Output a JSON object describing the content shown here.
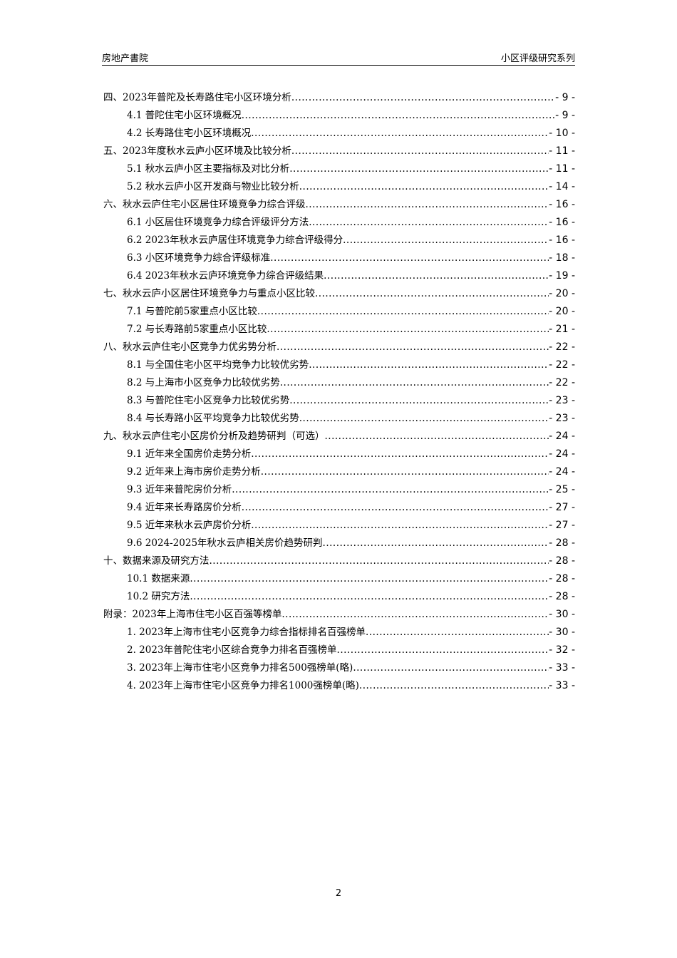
{
  "header": {
    "left": "房地产書院",
    "right": "小区评级研究系列"
  },
  "toc": [
    {
      "level": 1,
      "label": "四、2023年普陀及长寿路住宅小区环境分析",
      "page": "- 9 -"
    },
    {
      "level": 2,
      "label": "4.1 普陀住宅小区环境概况",
      "page": "- 9 -"
    },
    {
      "level": 2,
      "label": "4.2 长寿路住宅小区环境概况",
      "page": "- 10 -"
    },
    {
      "level": 1,
      "label": "五、2023年度秋水云庐小区环境及比较分析",
      "page": "- 11 -"
    },
    {
      "level": 2,
      "label": "5.1 秋水云庐小区主要指标及对比分析",
      "page": "- 11 -"
    },
    {
      "level": 2,
      "label": "5.2 秋水云庐小区开发商与物业比较分析",
      "page": "- 14 -"
    },
    {
      "level": 1,
      "label": "六、秋水云庐住宅小区居住环境竞争力综合评级",
      "page": "- 16 -"
    },
    {
      "level": 2,
      "label": "6.1 小区居住环境竞争力综合评级评分方法",
      "page": "- 16 -"
    },
    {
      "level": 2,
      "label": "6.2 2023年秋水云庐居住环境竞争力综合评级得分",
      "page": "- 16 -"
    },
    {
      "level": 2,
      "label": "6.3 小区环境竞争力综合评级标准",
      "page": "- 18 -"
    },
    {
      "level": 2,
      "label": "6.4 2023年秋水云庐环境竞争力综合评级结果",
      "page": "- 19 -"
    },
    {
      "level": 1,
      "label": "七、秋水云庐小区居住环境竞争力与重点小区比较",
      "page": "- 20 -"
    },
    {
      "level": 2,
      "label": "7.1 与普陀前5家重点小区比较",
      "page": "- 20 -"
    },
    {
      "level": 2,
      "label": "7.2 与长寿路前5家重点小区比较",
      "page": "- 21 -"
    },
    {
      "level": 1,
      "label": "八、秋水云庐住宅小区竞争力优劣势分析",
      "page": "- 22 -"
    },
    {
      "level": 2,
      "label": "8.1 与全国住宅小区平均竞争力比较优劣势",
      "page": "- 22 -"
    },
    {
      "level": 2,
      "label": "8.2 与上海市小区竞争力比较优劣势",
      "page": "- 22 -"
    },
    {
      "level": 2,
      "label": "8.3 与普陀住宅小区竞争力比较优劣势",
      "page": "- 23 -"
    },
    {
      "level": 2,
      "label": "8.4 与长寿路小区平均竞争力比较优劣势",
      "page": "- 23 -"
    },
    {
      "level": 1,
      "label": "九、秋水云庐住宅小区房价分析及趋势研判（可选）",
      "page": "- 24 -"
    },
    {
      "level": 2,
      "label": "9.1 近年来全国房价走势分析",
      "page": "- 24 -"
    },
    {
      "level": 2,
      "label": "9.2 近年来上海市房价走势分析",
      "page": "- 24 -"
    },
    {
      "level": 2,
      "label": "9.3 近年来普陀房价分析",
      "page": "- 25 -"
    },
    {
      "level": 2,
      "label": "9.4 近年来长寿路房价分析",
      "page": "- 27 -"
    },
    {
      "level": 2,
      "label": "9.5 近年来秋水云庐房价分析",
      "page": "- 27 -"
    },
    {
      "level": 2,
      "label": "9.6 2024-2025年秋水云庐相关房价趋势研判",
      "page": "- 28 -"
    },
    {
      "level": 1,
      "label": "十、数据来源及研究方法",
      "page": "- 28 -"
    },
    {
      "level": 2,
      "label": "10.1 数据来源",
      "page": "- 28 -"
    },
    {
      "level": 2,
      "label": "10.2 研究方法",
      "page": "- 28 -"
    },
    {
      "level": 1,
      "label": "附录：2023年上海市住宅小区百强等榜单",
      "page": "- 30 -"
    },
    {
      "level": 2,
      "label": "1. 2023年上海市住宅小区竞争力综合指标排名百强榜单",
      "page": "- 30 -"
    },
    {
      "level": 2,
      "label": "2. 2023年普陀住宅小区综合竞争力排名百强榜单",
      "page": "- 32 -"
    },
    {
      "level": 2,
      "label": "3. 2023年上海市住宅小区竞争力排名500强榜单(略)",
      "page": "- 33 -"
    },
    {
      "level": 2,
      "label": "4. 2023年上海市住宅小区竞争力排名1000强榜单(略)",
      "page": "- 33 -"
    }
  ],
  "footer": {
    "page_number": "2"
  }
}
